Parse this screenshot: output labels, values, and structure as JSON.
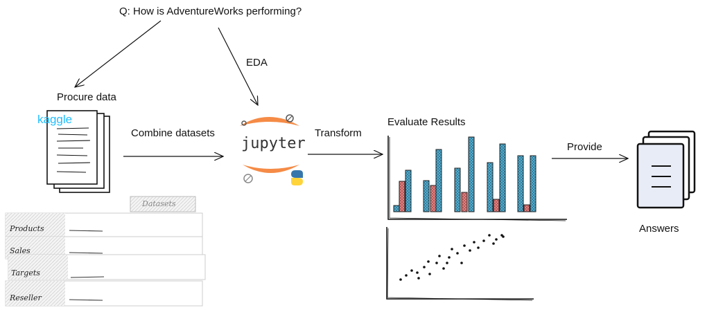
{
  "question": "Q: How is AdventureWorks performing?",
  "edges": {
    "eda": "EDA",
    "combine": "Combine datasets",
    "transform": "Transform",
    "provide": "Provide"
  },
  "nodes": {
    "procure": "Procure data",
    "kaggle_logo": "kaggle",
    "jupyter_logo": "jupyter",
    "evaluate": "Evaluate Results",
    "answers": "Answers"
  },
  "datasets": {
    "tab": "Datasets",
    "tables": [
      "Products",
      "Sales",
      "Targets",
      "Reseller"
    ]
  },
  "colors": {
    "blue": "#5ab4d6",
    "red": "#e88a8a",
    "jupyter_orange": "#f37726",
    "kaggle": "#20beff",
    "python_blue": "#3776ab",
    "python_yellow": "#ffd43b"
  },
  "icons": [
    "document-stack-icon",
    "jupyter-logo",
    "python-icon",
    "bar-chart-icon",
    "scatter-plot-icon",
    "answers-document-icon"
  ]
}
